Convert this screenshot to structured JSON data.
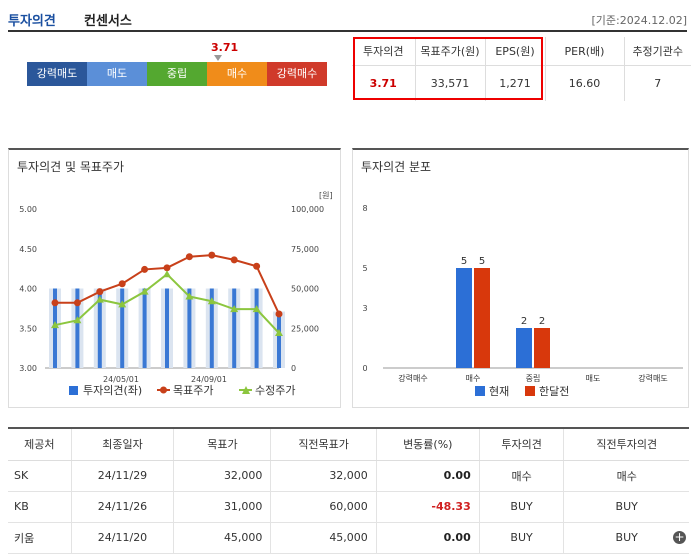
{
  "header": {
    "title1": "투자의견",
    "title2": "컨센서스",
    "date": "[기준:2024.12.02]"
  },
  "scale": {
    "marker_value": "3.71",
    "segments": [
      {
        "label": "강력매도",
        "color": "#2b579a"
      },
      {
        "label": "매도",
        "color": "#5b8fd8"
      },
      {
        "label": "중립",
        "color": "#54a830"
      },
      {
        "label": "매수",
        "color": "#f08c1a"
      },
      {
        "label": "강력매수",
        "color": "#d03a2a"
      }
    ]
  },
  "consensus": {
    "headers": [
      "투자의견",
      "목표주가(원)",
      "EPS(원)",
      "PER(배)",
      "추정기관수"
    ],
    "values": [
      "3.71",
      "33,571",
      "1,271",
      "16.60",
      "7"
    ]
  },
  "panel1": {
    "title": "투자의견 및 목표주가",
    "unit": "[원]",
    "legend": [
      "투자의견(좌)",
      "목표주가",
      "수정주가"
    ]
  },
  "panel2": {
    "title": "투자의견 분포",
    "legend": [
      "현재",
      "한달전"
    ]
  },
  "chart_data": [
    {
      "type": "line",
      "title": "",
      "x_ticks": [
        "24/05/01",
        "24/09/01"
      ],
      "ylim_left": [
        3.0,
        5.0
      ],
      "yticks_left": [
        "5.00",
        "4.50",
        "4.00",
        "3.50",
        "3.00"
      ],
      "ylim_right": [
        0,
        100000
      ],
      "yticks_right": [
        "100,000",
        "75,000",
        "50,000",
        "25,000",
        "0"
      ],
      "series": [
        {
          "name": "투자의견(좌)",
          "type": "bar",
          "axis": "left",
          "color": "#3a78d4",
          "values": [
            4.0,
            4.0,
            4.0,
            4.0,
            4.0,
            4.0,
            4.0,
            4.0,
            4.0,
            4.0,
            3.71
          ]
        },
        {
          "name": "목표주가",
          "type": "line",
          "axis": "right",
          "color": "#c8401a",
          "values": [
            41000,
            41000,
            48000,
            53000,
            62000,
            63000,
            70000,
            71000,
            68000,
            64000,
            34000
          ]
        },
        {
          "name": "수정주가",
          "type": "line",
          "axis": "right",
          "color": "#8cc63f",
          "values": [
            27000,
            30000,
            43000,
            40000,
            48000,
            59000,
            45000,
            42000,
            37000,
            37000,
            22000
          ]
        }
      ]
    },
    {
      "type": "bar",
      "title": "",
      "categories": [
        "강력매수",
        "매수",
        "중립",
        "매도",
        "강력매도"
      ],
      "ylim": [
        0,
        8
      ],
      "yticks": [
        "8",
        "5",
        "3",
        "0"
      ],
      "series": [
        {
          "name": "현재",
          "color": "#2c6fd6",
          "values": [
            0,
            5,
            2,
            0,
            0
          ]
        },
        {
          "name": "한달전",
          "color": "#d8380c",
          "values": [
            0,
            5,
            2,
            0,
            0
          ]
        }
      ]
    }
  ],
  "brokers": {
    "headers": [
      "제공처",
      "최종일자",
      "목표가",
      "직전목표가",
      "변동률(%)",
      "투자의견",
      "직전투자의견"
    ],
    "rows": [
      {
        "name": "SK",
        "date": "24/11/29",
        "target": "32,000",
        "prev": "32,000",
        "change": "0.00",
        "opinion": "매수",
        "prev_opinion": "매수"
      },
      {
        "name": "KB",
        "date": "24/11/26",
        "target": "31,000",
        "prev": "60,000",
        "change": "-48.33",
        "opinion": "BUY",
        "prev_opinion": "BUY"
      },
      {
        "name": "키움",
        "date": "24/11/20",
        "target": "45,000",
        "prev": "45,000",
        "change": "0.00",
        "opinion": "BUY",
        "prev_opinion": "BUY"
      }
    ]
  }
}
